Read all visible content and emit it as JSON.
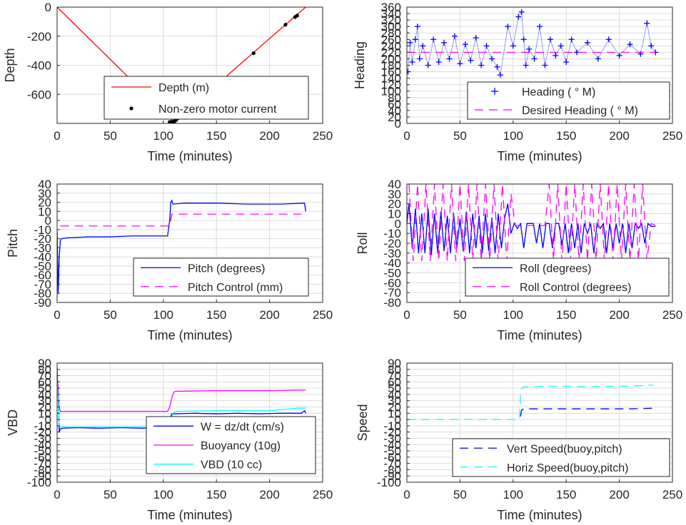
{
  "colors": {
    "red": "#ff0000",
    "blue": "#0000ff",
    "magenta": "#ff00ff",
    "cyan": "#00ffff",
    "black": "#000000",
    "grid": "#dcdcdc",
    "axis": "#262626"
  },
  "chart_data": [
    {
      "id": "depth",
      "type": "line",
      "ylabel": "Depth",
      "xlabel": "Time (minutes)",
      "xlim": [
        0,
        250
      ],
      "ylim": [
        -800,
        0
      ],
      "xticks": [
        0,
        50,
        100,
        150,
        200,
        250
      ],
      "yticks": [
        0,
        -200,
        -400,
        -600
      ],
      "legend": "bottom-right",
      "series": [
        {
          "name": "Depth (m)",
          "color": "#ff0000",
          "style": "solid",
          "x": [
            0,
            110,
            234
          ],
          "y": [
            0,
            -790,
            0
          ]
        },
        {
          "name": "Non-zero motor current",
          "color": "#000000",
          "style": "dots",
          "x": [
            106,
            107,
            108,
            109,
            110,
            111,
            112,
            114,
            185,
            215,
            224,
            226
          ],
          "y": [
            -790,
            -790,
            -790,
            -789,
            -787,
            -783,
            -777,
            -764,
            -317,
            -121,
            -68,
            -58
          ]
        }
      ]
    },
    {
      "id": "heading",
      "type": "scatter",
      "ylabel": "Heading",
      "xlabel": "Time (minutes)",
      "xlim": [
        0,
        250
      ],
      "ylim": [
        0,
        360
      ],
      "xticks": [
        0,
        50,
        100,
        150,
        200,
        250
      ],
      "yticks": [
        0,
        20,
        40,
        60,
        80,
        100,
        120,
        140,
        160,
        180,
        200,
        220,
        240,
        260,
        280,
        300,
        320,
        340,
        360
      ],
      "legend": "bottom-right",
      "series": [
        {
          "name": "Heading ( ° M)",
          "color": "#0000ff",
          "style": "plus",
          "x": [
            1,
            3,
            5,
            8,
            10,
            12,
            15,
            20,
            25,
            30,
            35,
            40,
            45,
            50,
            55,
            60,
            65,
            70,
            75,
            80,
            85,
            88,
            95,
            100,
            105,
            108,
            110,
            112,
            115,
            120,
            125,
            130,
            135,
            140,
            145,
            150,
            155,
            160,
            170,
            180,
            190,
            200,
            210,
            220,
            226,
            230,
            234
          ],
          "y": [
            160,
            250,
            190,
            260,
            300,
            200,
            240,
            180,
            260,
            190,
            250,
            200,
            270,
            185,
            245,
            195,
            265,
            180,
            240,
            200,
            175,
            150,
            300,
            240,
            330,
            345,
            260,
            180,
            230,
            200,
            300,
            180,
            260,
            210,
            240,
            190,
            260,
            220,
            250,
            200,
            260,
            210,
            245,
            215,
            310,
            240,
            220
          ]
        },
        {
          "name": "Desired Heading ( ° M)",
          "color": "#ff00ff",
          "style": "dashed",
          "x": [
            0,
            234
          ],
          "y": [
            220,
            220
          ]
        }
      ]
    },
    {
      "id": "pitch",
      "type": "line",
      "ylabel": "Pitch",
      "xlabel": "Time (minutes)",
      "xlim": [
        0,
        250
      ],
      "ylim": [
        -90,
        40
      ],
      "xticks": [
        0,
        50,
        100,
        150,
        200,
        250
      ],
      "yticks": [
        40,
        30,
        20,
        10,
        0,
        -10,
        -20,
        -30,
        -40,
        -50,
        -60,
        -70,
        -80,
        -90
      ],
      "legend": "bottom-right",
      "series": [
        {
          "name": "Pitch (degrees)",
          "color": "#0000ff",
          "style": "solid",
          "x": [
            0,
            1,
            2,
            3,
            4,
            10,
            30,
            50,
            70,
            90,
            104,
            106,
            107,
            108,
            109,
            120,
            150,
            180,
            210,
            233,
            234
          ],
          "y": [
            -10,
            -80,
            -40,
            -22,
            -20,
            -19,
            -18,
            -18,
            -17,
            -17,
            -17,
            0,
            20,
            22,
            18,
            19,
            19,
            18,
            18,
            19,
            10
          ]
        },
        {
          "name": "Pitch Control (mm)",
          "color": "#ff00ff",
          "style": "dashed",
          "x": [
            3,
            106,
            108,
            234
          ],
          "y": [
            -6,
            -6,
            7,
            7
          ]
        }
      ]
    },
    {
      "id": "roll",
      "type": "line",
      "ylabel": "Roll",
      "xlabel": "Time (minutes)",
      "xlim": [
        0,
        250
      ],
      "ylim": [
        -80,
        40
      ],
      "xticks": [
        0,
        50,
        100,
        150,
        200,
        250
      ],
      "yticks": [
        40,
        30,
        20,
        10,
        0,
        -10,
        -20,
        -30,
        -40,
        -50,
        -60,
        -70,
        -80
      ],
      "legend": "bottom-right",
      "series": [
        {
          "name": "Roll (degrees)",
          "color": "#0000ff",
          "style": "solid",
          "x": [
            0,
            2,
            5,
            8,
            11,
            14,
            17,
            20,
            23,
            26,
            29,
            32,
            35,
            38,
            41,
            44,
            47,
            50,
            53,
            56,
            59,
            62,
            65,
            68,
            71,
            74,
            77,
            80,
            83,
            86,
            89,
            92,
            95,
            98,
            101,
            104,
            107,
            110,
            113,
            116,
            119,
            122,
            125,
            128,
            131,
            134,
            137,
            140,
            143,
            146,
            149,
            152,
            155,
            158,
            161,
            164,
            167,
            170,
            173,
            176,
            179,
            182,
            185,
            188,
            191,
            194,
            197,
            200,
            203,
            206,
            209,
            212,
            215,
            218,
            221,
            224,
            227,
            230,
            234
          ],
          "y": [
            0,
            20,
            -25,
            15,
            -30,
            10,
            -30,
            15,
            -32,
            10,
            -30,
            12,
            -28,
            8,
            -30,
            10,
            -25,
            5,
            -28,
            12,
            -30,
            10,
            -25,
            8,
            -30,
            10,
            -28,
            6,
            -30,
            10,
            -25,
            5,
            20,
            -10,
            0,
            -5,
            0,
            -25,
            0,
            0,
            0,
            -20,
            0,
            -25,
            0,
            0,
            -25,
            0,
            0,
            -22,
            0,
            -30,
            0,
            -25,
            0,
            -30,
            0,
            -10,
            0,
            -30,
            0,
            -5,
            0,
            -30,
            0,
            -25,
            0,
            -20,
            0,
            -30,
            0,
            -25,
            0,
            -5,
            0,
            -20,
            0,
            -3,
            -3
          ]
        },
        {
          "name": "Roll Control (degrees)",
          "color": "#ff00ff",
          "style": "dashed",
          "x": [
            2,
            6,
            10,
            14,
            18,
            22,
            26,
            30,
            34,
            38,
            42,
            46,
            50,
            54,
            58,
            62,
            66,
            70,
            74,
            78,
            82,
            86,
            90,
            94,
            98,
            102,
            106,
            110,
            114,
            118,
            122,
            126,
            130,
            134,
            138,
            142,
            146,
            150,
            154,
            158,
            162,
            166,
            170,
            174,
            178,
            182,
            186,
            190,
            194,
            198,
            202,
            206,
            210,
            214,
            218,
            222,
            226,
            230,
            234
          ],
          "y": [
            40,
            -38,
            40,
            -38,
            40,
            -38,
            40,
            -38,
            40,
            -38,
            40,
            -38,
            40,
            -38,
            40,
            -38,
            40,
            -38,
            40,
            -38,
            40,
            -38,
            40,
            -38,
            30,
            -2,
            -2,
            -2,
            -2,
            -2,
            -2,
            -2,
            -2,
            40,
            -38,
            40,
            -38,
            40,
            -38,
            40,
            -38,
            40,
            -38,
            40,
            -38,
            40,
            -38,
            40,
            -38,
            40,
            -38,
            40,
            -38,
            40,
            -38,
            40,
            -38,
            0,
            -2
          ]
        }
      ]
    },
    {
      "id": "vbd",
      "type": "line",
      "ylabel": "VBD",
      "xlabel": "Time (minutes)",
      "xlim": [
        0,
        250
      ],
      "ylim": [
        -100,
        90
      ],
      "xticks": [
        0,
        50,
        100,
        150,
        200,
        250
      ],
      "yticks": [
        90,
        80,
        70,
        60,
        50,
        40,
        30,
        20,
        10,
        0,
        -10,
        -20,
        -30,
        -40,
        -50,
        -60,
        -70,
        -80,
        -90,
        -100
      ],
      "legend": "bottom-right",
      "series": [
        {
          "name": "W = dz/dt (cm/s)",
          "color": "#0000ff",
          "style": "solid",
          "x": [
            0,
            1,
            2,
            3,
            5,
            20,
            40,
            60,
            80,
            100,
            104,
            106,
            108,
            110,
            130,
            150,
            170,
            190,
            210,
            230,
            233,
            234
          ],
          "y": [
            70,
            50,
            -20,
            -15,
            -14,
            -13,
            -14,
            -13,
            -14,
            -13,
            -14,
            0,
            9,
            9,
            10,
            9,
            10,
            9,
            10,
            10,
            14,
            10
          ]
        },
        {
          "name": "Buoyancy (10g)",
          "color": "#ff00ff",
          "style": "solid",
          "x": [
            0,
            1,
            2,
            3,
            5,
            50,
            100,
            104,
            106,
            108,
            110,
            112,
            150,
            200,
            226,
            234
          ],
          "y": [
            80,
            40,
            20,
            13,
            13,
            13,
            13,
            13,
            20,
            35,
            44,
            45,
            46,
            46,
            47,
            47
          ]
        },
        {
          "name": "VBD (10 cc)",
          "color": "#00ffff",
          "style": "solid",
          "x": [
            0,
            1,
            2,
            3,
            5,
            50,
            100,
            104,
            106,
            108,
            110,
            112,
            150,
            200,
            226,
            234
          ],
          "y": [
            60,
            30,
            -10,
            -12,
            -12,
            -12,
            -12,
            -12,
            -5,
            5,
            12,
            13,
            14,
            14,
            18,
            18
          ]
        }
      ]
    },
    {
      "id": "speed",
      "type": "line",
      "ylabel": "Speed",
      "xlabel": "Time (minutes)",
      "xlim": [
        0,
        250
      ],
      "ylim": [
        -100,
        90
      ],
      "xticks": [
        0,
        50,
        100,
        150,
        200,
        250
      ],
      "yticks": [
        90,
        80,
        70,
        60,
        50,
        40,
        30,
        20,
        10,
        0,
        -10,
        -20,
        -30,
        -40,
        -50,
        -60,
        -70,
        -80,
        -90,
        -100
      ],
      "legend": "bottom-right",
      "series": [
        {
          "name": "Vert Speed(buoy,pitch)",
          "color": "#0000ff",
          "style": "dashed",
          "x": [
            107,
            108,
            110,
            130,
            150,
            170,
            190,
            210,
            232
          ],
          "y": [
            5,
            15,
            17,
            17,
            17,
            17,
            17,
            17,
            18
          ]
        },
        {
          "name": "Horiz Speed(buoy,pitch)",
          "color": "#00ffff",
          "style": "dashed",
          "x": [
            0,
            106,
            107,
            108,
            110,
            130,
            150,
            170,
            190,
            210,
            232
          ],
          "y": [
            0,
            0,
            40,
            50,
            52,
            53,
            53,
            52,
            53,
            53,
            55
          ]
        }
      ]
    }
  ]
}
